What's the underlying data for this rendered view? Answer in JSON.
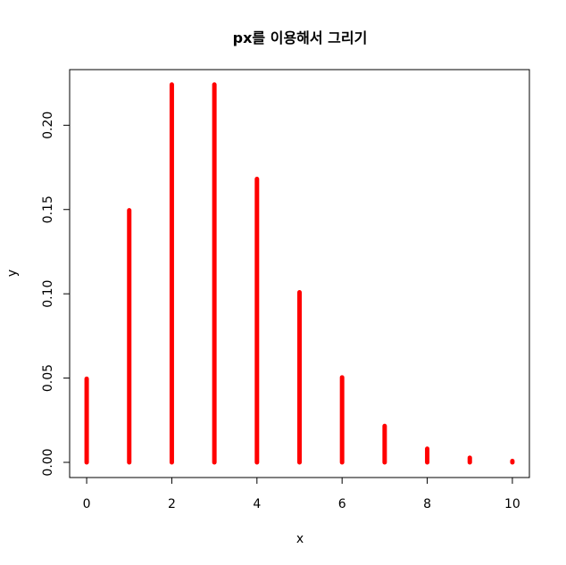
{
  "chart_data": {
    "type": "bar",
    "title": "px를 이용해서 그리기",
    "xlabel": "x",
    "ylabel": "y",
    "x": [
      0,
      1,
      2,
      3,
      4,
      5,
      6,
      7,
      8,
      9,
      10
    ],
    "values": [
      0.0496,
      0.1495,
      0.2241,
      0.2241,
      0.1681,
      0.1009,
      0.0504,
      0.0216,
      0.0081,
      0.0027,
      0.0008
    ],
    "xlim": [
      -0.4,
      10.4
    ],
    "ylim": [
      -0.009,
      0.233
    ],
    "xticks": [
      0,
      2,
      4,
      6,
      8,
      10
    ],
    "yticks": [
      0.0,
      0.05,
      0.1,
      0.15,
      0.2
    ],
    "xtick_labels": [
      "0",
      "2",
      "4",
      "6",
      "8",
      "10"
    ],
    "ytick_labels": [
      "0.00",
      "0.05",
      "0.10",
      "0.15",
      "0.20"
    ],
    "color": "#ff0000",
    "grid": false,
    "legend": "none"
  }
}
